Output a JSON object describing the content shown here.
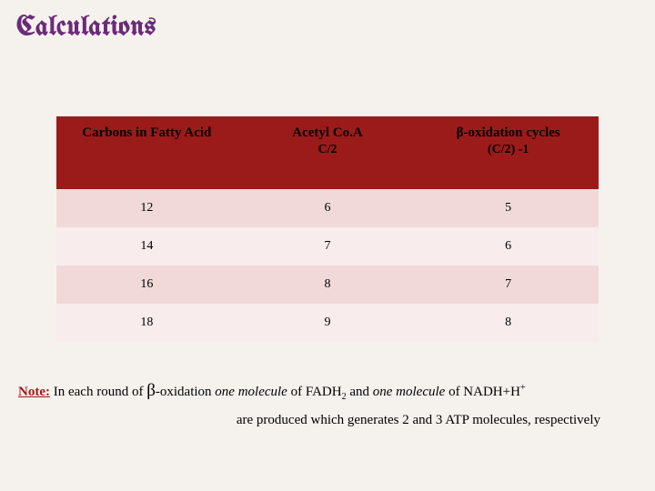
{
  "title": "Calculations",
  "table": {
    "columns": [
      {
        "label": "Carbons in Fatty Acid",
        "sub": ""
      },
      {
        "label": "Acetyl Co.A",
        "sub": "C/2"
      },
      {
        "label": "β-oxidation cycles",
        "sub": "(C/2) -1"
      }
    ],
    "rows": [
      [
        "12",
        "6",
        "5"
      ],
      [
        "14",
        "7",
        "6"
      ],
      [
        "16",
        "8",
        "7"
      ],
      [
        "18",
        "9",
        "8"
      ]
    ],
    "header_bg": "#9b1b1b",
    "row_odd_bg": "#f1d9d9",
    "row_even_bg": "#f9ecec"
  },
  "note": {
    "label": "Note:",
    "part1": " In each round of ",
    "beta": "β",
    "part2": "-oxidation ",
    "italic1": "one molecule",
    "part3": " of FADH",
    "sub_2a": "2",
    "part4": " and ",
    "italic2": "one molecule",
    "part5": " of NADH+H",
    "sup_plus": "+",
    "line2": "are produced which generates 2 and 3 ATP molecules, respectively"
  },
  "colors": {
    "title_color": "#6b2a7a",
    "note_label_color": "#9b1b1b",
    "page_bg": "#f5f2ed"
  }
}
